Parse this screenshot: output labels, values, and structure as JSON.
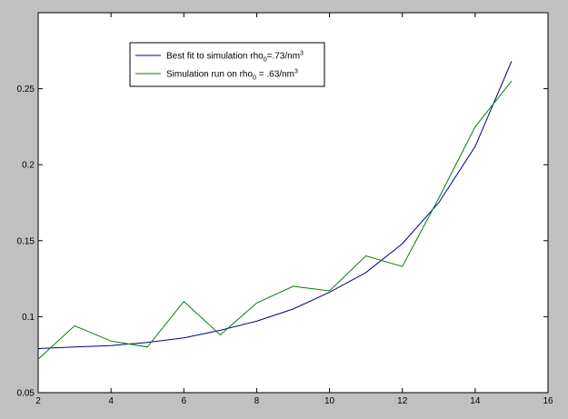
{
  "chart_data": {
    "type": "line",
    "title": "",
    "xlabel": "",
    "ylabel": "",
    "xlim": [
      2,
      16
    ],
    "ylim": [
      0.05,
      0.3
    ],
    "xticks": [
      2,
      4,
      6,
      8,
      10,
      12,
      14,
      16
    ],
    "yticks": [
      0.05,
      0.1,
      0.15,
      0.2,
      0.25
    ],
    "ytick_labels": [
      "0.05",
      "0.1",
      "0.15",
      "0.2",
      "0.25"
    ],
    "grid": false,
    "legend_position": "top-left",
    "series": [
      {
        "name": "Best fit  to simulation rho",
        "name_sub": "0",
        "name_mid": "=.73/nm",
        "name_sup": "3",
        "color": "#00008b",
        "x": [
          2,
          3,
          4,
          5,
          6,
          7,
          8,
          9,
          10,
          11,
          12,
          13,
          14,
          15
        ],
        "y": [
          0.079,
          0.08,
          0.081,
          0.083,
          0.086,
          0.091,
          0.097,
          0.105,
          0.116,
          0.129,
          0.148,
          0.175,
          0.212,
          0.268
        ]
      },
      {
        "name": "Simulation run on rho",
        "name_sub": "0",
        "name_mid": " = .63/nm",
        "name_sup": "3",
        "color": "#008000",
        "x": [
          2,
          3,
          4,
          5,
          6,
          7,
          8,
          9,
          10,
          11,
          12,
          13,
          14,
          15
        ],
        "y": [
          0.072,
          0.094,
          0.084,
          0.08,
          0.11,
          0.088,
          0.109,
          0.12,
          0.117,
          0.14,
          0.133,
          0.178,
          0.225,
          0.255
        ]
      }
    ]
  }
}
